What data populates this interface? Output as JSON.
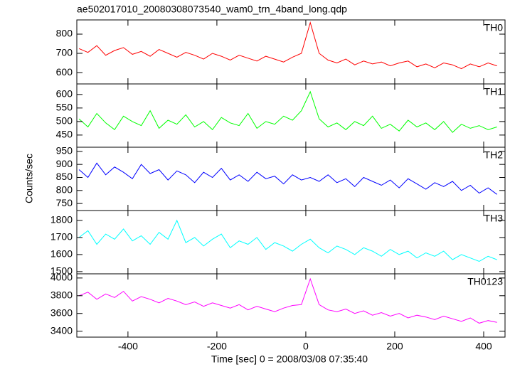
{
  "chart_data": [
    {
      "type": "line",
      "title": "ae502017010_20080308073540_wam0_trn_4band_long.qdp",
      "x": [
        -510,
        -490,
        -470,
        -450,
        -430,
        -410,
        -390,
        -370,
        -350,
        -330,
        -310,
        -290,
        -270,
        -250,
        -230,
        -210,
        -190,
        -170,
        -150,
        -130,
        -110,
        -90,
        -70,
        -50,
        -30,
        -10,
        10,
        30,
        50,
        70,
        90,
        110,
        130,
        150,
        170,
        190,
        210,
        230,
        250,
        270,
        290,
        310,
        330,
        350,
        370,
        390,
        410,
        430
      ],
      "series": [
        {
          "name": "TH0",
          "color": "#ff0000",
          "values": [
            725,
            705,
            740,
            690,
            715,
            730,
            695,
            710,
            685,
            720,
            700,
            680,
            705,
            690,
            670,
            700,
            685,
            665,
            690,
            675,
            660,
            685,
            670,
            655,
            680,
            700,
            860,
            700,
            665,
            650,
            670,
            640,
            660,
            645,
            655,
            635,
            650,
            660,
            630,
            645,
            625,
            650,
            640,
            620,
            645,
            630,
            650,
            635
          ]
        }
      ],
      "xlim": [
        -515,
        448
      ],
      "xticks": [
        -400,
        -200,
        0,
        200,
        400
      ],
      "ylim": [
        541,
        874
      ],
      "yticks": [
        600,
        700,
        800
      ]
    },
    {
      "type": "line",
      "y_label": "Counts/sec",
      "x": [
        -510,
        -490,
        -470,
        -450,
        -430,
        -410,
        -390,
        -370,
        -350,
        -330,
        -310,
        -290,
        -270,
        -250,
        -230,
        -210,
        -190,
        -170,
        -150,
        -130,
        -110,
        -90,
        -70,
        -50,
        -30,
        -10,
        10,
        30,
        50,
        70,
        90,
        110,
        130,
        150,
        170,
        190,
        210,
        230,
        250,
        270,
        290,
        310,
        330,
        350,
        370,
        390,
        410,
        430
      ],
      "series": [
        {
          "name": "TH1",
          "color": "#00ff00",
          "values": [
            510,
            480,
            530,
            495,
            470,
            520,
            500,
            485,
            540,
            475,
            505,
            490,
            525,
            480,
            500,
            470,
            515,
            495,
            485,
            530,
            475,
            500,
            490,
            520,
            505,
            540,
            610,
            510,
            480,
            495,
            470,
            500,
            485,
            520,
            475,
            490,
            465,
            505,
            480,
            495,
            470,
            500,
            460,
            490,
            475,
            485,
            470,
            480
          ]
        }
      ],
      "xlim": [
        -515,
        448
      ],
      "xticks": [
        -400,
        -200,
        0,
        200,
        400
      ],
      "ylim": [
        405,
        639
      ],
      "yticks": [
        450,
        500,
        550,
        600
      ]
    },
    {
      "type": "line",
      "x": [
        -510,
        -490,
        -470,
        -450,
        -430,
        -410,
        -390,
        -370,
        -350,
        -330,
        -310,
        -290,
        -270,
        -250,
        -230,
        -210,
        -190,
        -170,
        -150,
        -130,
        -110,
        -90,
        -70,
        -50,
        -30,
        -10,
        10,
        30,
        50,
        70,
        90,
        110,
        130,
        150,
        170,
        190,
        210,
        230,
        250,
        270,
        290,
        310,
        330,
        350,
        370,
        390,
        410,
        430
      ],
      "series": [
        {
          "name": "TH2",
          "color": "#0000ff",
          "values": [
            880,
            850,
            905,
            860,
            890,
            870,
            845,
            900,
            865,
            880,
            840,
            875,
            860,
            830,
            870,
            850,
            885,
            840,
            860,
            835,
            870,
            845,
            855,
            825,
            860,
            840,
            850,
            835,
            860,
            830,
            845,
            815,
            850,
            835,
            820,
            840,
            810,
            845,
            825,
            805,
            830,
            815,
            835,
            800,
            820,
            790,
            810,
            785
          ]
        }
      ],
      "xlim": [
        -515,
        448
      ],
      "xticks": [
        -400,
        -200,
        0,
        200,
        400
      ],
      "ylim": [
        723,
        966
      ],
      "yticks": [
        750,
        800,
        850,
        900,
        950
      ]
    },
    {
      "type": "line",
      "x": [
        -510,
        -490,
        -470,
        -450,
        -430,
        -410,
        -390,
        -370,
        -350,
        -330,
        -310,
        -290,
        -270,
        -250,
        -230,
        -210,
        -190,
        -170,
        -150,
        -130,
        -110,
        -90,
        -70,
        -50,
        -30,
        -10,
        10,
        30,
        50,
        70,
        90,
        110,
        130,
        150,
        170,
        190,
        210,
        230,
        250,
        270,
        290,
        310,
        330,
        350,
        370,
        390,
        410,
        430
      ],
      "series": [
        {
          "name": "TH3",
          "color": "#00ffff",
          "values": [
            1700,
            1740,
            1660,
            1720,
            1690,
            1750,
            1680,
            1710,
            1660,
            1730,
            1690,
            1800,
            1670,
            1700,
            1650,
            1690,
            1720,
            1640,
            1680,
            1660,
            1700,
            1630,
            1670,
            1650,
            1620,
            1660,
            1690,
            1640,
            1610,
            1650,
            1630,
            1600,
            1640,
            1620,
            1590,
            1630,
            1600,
            1620,
            1580,
            1610,
            1590,
            1620,
            1570,
            1600,
            1580,
            1560,
            1590,
            1570
          ]
        }
      ],
      "xlim": [
        -515,
        448
      ],
      "xticks": [
        -400,
        -200,
        0,
        200,
        400
      ],
      "ylim": [
        1487,
        1858
      ],
      "yticks": [
        1500,
        1600,
        1700,
        1800
      ]
    },
    {
      "type": "line",
      "x_label": "Time [sec] 0 = 2008/03/08 07:35:40",
      "x": [
        -510,
        -490,
        -470,
        -450,
        -430,
        -410,
        -390,
        -370,
        -350,
        -330,
        -310,
        -290,
        -270,
        -250,
        -230,
        -210,
        -190,
        -170,
        -150,
        -130,
        -110,
        -90,
        -70,
        -50,
        -30,
        -10,
        10,
        30,
        50,
        70,
        90,
        110,
        130,
        150,
        170,
        190,
        210,
        230,
        250,
        270,
        290,
        310,
        330,
        350,
        370,
        390,
        410,
        430
      ],
      "series": [
        {
          "name": "TH0123",
          "color": "#ff00ff",
          "values": [
            3800,
            3840,
            3760,
            3820,
            3780,
            3850,
            3740,
            3790,
            3760,
            3720,
            3770,
            3740,
            3700,
            3730,
            3680,
            3720,
            3690,
            3660,
            3700,
            3640,
            3680,
            3650,
            3620,
            3660,
            3690,
            3700,
            3990,
            3700,
            3640,
            3620,
            3650,
            3600,
            3630,
            3580,
            3610,
            3570,
            3600,
            3550,
            3580,
            3560,
            3530,
            3570,
            3540,
            3510,
            3550,
            3490,
            3520,
            3500
          ]
        }
      ],
      "xlim": [
        -515,
        448
      ],
      "xticks": [
        -400,
        -200,
        0,
        200,
        400
      ],
      "ylim": [
        3333,
        4047
      ],
      "yticks": [
        3400,
        3600,
        3800,
        4000
      ]
    }
  ]
}
